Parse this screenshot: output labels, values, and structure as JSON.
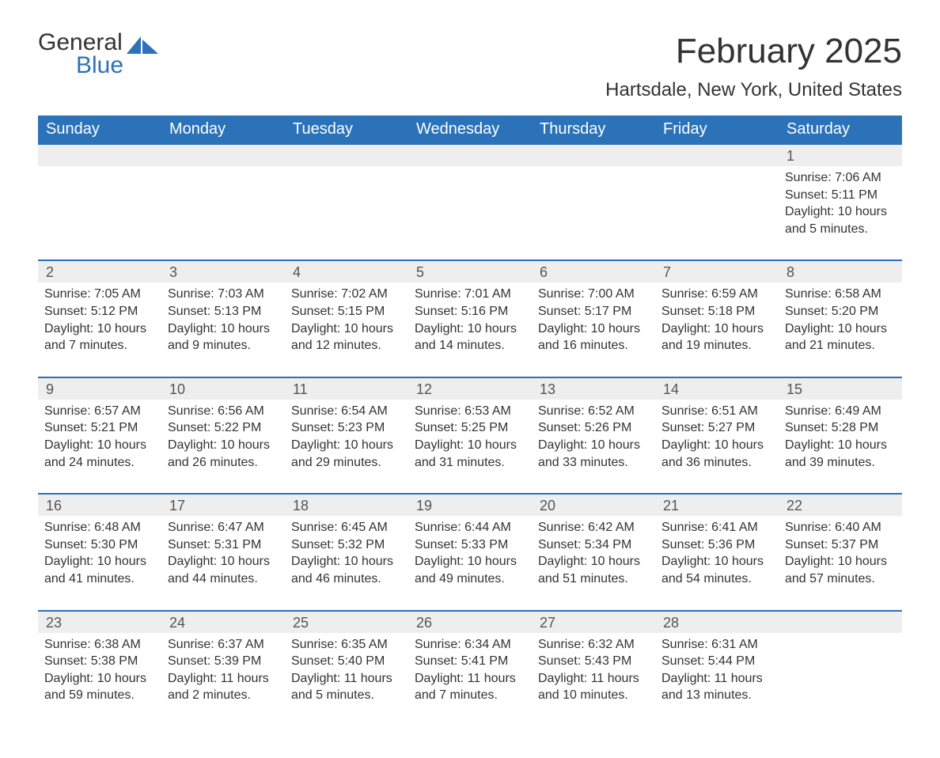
{
  "logo": {
    "text1": "General",
    "text2": "Blue",
    "icon_color": "#2b72b8"
  },
  "title": "February 2025",
  "location": "Hartsdale, New York, United States",
  "colors": {
    "header_bg": "#2b72b8",
    "header_text": "#ffffff",
    "daynum_bg": "#eeeeee",
    "daynum_border": "#2b72b8",
    "body_text": "#333333"
  },
  "day_headers": [
    "Sunday",
    "Monday",
    "Tuesday",
    "Wednesday",
    "Thursday",
    "Friday",
    "Saturday"
  ],
  "weeks": [
    [
      null,
      null,
      null,
      null,
      null,
      null,
      {
        "n": "1",
        "sr": "7:06 AM",
        "ss": "5:11 PM",
        "dl": "10 hours and 5 minutes."
      }
    ],
    [
      {
        "n": "2",
        "sr": "7:05 AM",
        "ss": "5:12 PM",
        "dl": "10 hours and 7 minutes."
      },
      {
        "n": "3",
        "sr": "7:03 AM",
        "ss": "5:13 PM",
        "dl": "10 hours and 9 minutes."
      },
      {
        "n": "4",
        "sr": "7:02 AM",
        "ss": "5:15 PM",
        "dl": "10 hours and 12 minutes."
      },
      {
        "n": "5",
        "sr": "7:01 AM",
        "ss": "5:16 PM",
        "dl": "10 hours and 14 minutes."
      },
      {
        "n": "6",
        "sr": "7:00 AM",
        "ss": "5:17 PM",
        "dl": "10 hours and 16 minutes."
      },
      {
        "n": "7",
        "sr": "6:59 AM",
        "ss": "5:18 PM",
        "dl": "10 hours and 19 minutes."
      },
      {
        "n": "8",
        "sr": "6:58 AM",
        "ss": "5:20 PM",
        "dl": "10 hours and 21 minutes."
      }
    ],
    [
      {
        "n": "9",
        "sr": "6:57 AM",
        "ss": "5:21 PM",
        "dl": "10 hours and 24 minutes."
      },
      {
        "n": "10",
        "sr": "6:56 AM",
        "ss": "5:22 PM",
        "dl": "10 hours and 26 minutes."
      },
      {
        "n": "11",
        "sr": "6:54 AM",
        "ss": "5:23 PM",
        "dl": "10 hours and 29 minutes."
      },
      {
        "n": "12",
        "sr": "6:53 AM",
        "ss": "5:25 PM",
        "dl": "10 hours and 31 minutes."
      },
      {
        "n": "13",
        "sr": "6:52 AM",
        "ss": "5:26 PM",
        "dl": "10 hours and 33 minutes."
      },
      {
        "n": "14",
        "sr": "6:51 AM",
        "ss": "5:27 PM",
        "dl": "10 hours and 36 minutes."
      },
      {
        "n": "15",
        "sr": "6:49 AM",
        "ss": "5:28 PM",
        "dl": "10 hours and 39 minutes."
      }
    ],
    [
      {
        "n": "16",
        "sr": "6:48 AM",
        "ss": "5:30 PM",
        "dl": "10 hours and 41 minutes."
      },
      {
        "n": "17",
        "sr": "6:47 AM",
        "ss": "5:31 PM",
        "dl": "10 hours and 44 minutes."
      },
      {
        "n": "18",
        "sr": "6:45 AM",
        "ss": "5:32 PM",
        "dl": "10 hours and 46 minutes."
      },
      {
        "n": "19",
        "sr": "6:44 AM",
        "ss": "5:33 PM",
        "dl": "10 hours and 49 minutes."
      },
      {
        "n": "20",
        "sr": "6:42 AM",
        "ss": "5:34 PM",
        "dl": "10 hours and 51 minutes."
      },
      {
        "n": "21",
        "sr": "6:41 AM",
        "ss": "5:36 PM",
        "dl": "10 hours and 54 minutes."
      },
      {
        "n": "22",
        "sr": "6:40 AM",
        "ss": "5:37 PM",
        "dl": "10 hours and 57 minutes."
      }
    ],
    [
      {
        "n": "23",
        "sr": "6:38 AM",
        "ss": "5:38 PM",
        "dl": "10 hours and 59 minutes."
      },
      {
        "n": "24",
        "sr": "6:37 AM",
        "ss": "5:39 PM",
        "dl": "11 hours and 2 minutes."
      },
      {
        "n": "25",
        "sr": "6:35 AM",
        "ss": "5:40 PM",
        "dl": "11 hours and 5 minutes."
      },
      {
        "n": "26",
        "sr": "6:34 AM",
        "ss": "5:41 PM",
        "dl": "11 hours and 7 minutes."
      },
      {
        "n": "27",
        "sr": "6:32 AM",
        "ss": "5:43 PM",
        "dl": "11 hours and 10 minutes."
      },
      {
        "n": "28",
        "sr": "6:31 AM",
        "ss": "5:44 PM",
        "dl": "11 hours and 13 minutes."
      },
      null
    ]
  ],
  "labels": {
    "sunrise": "Sunrise: ",
    "sunset": "Sunset: ",
    "daylight": "Daylight: "
  }
}
